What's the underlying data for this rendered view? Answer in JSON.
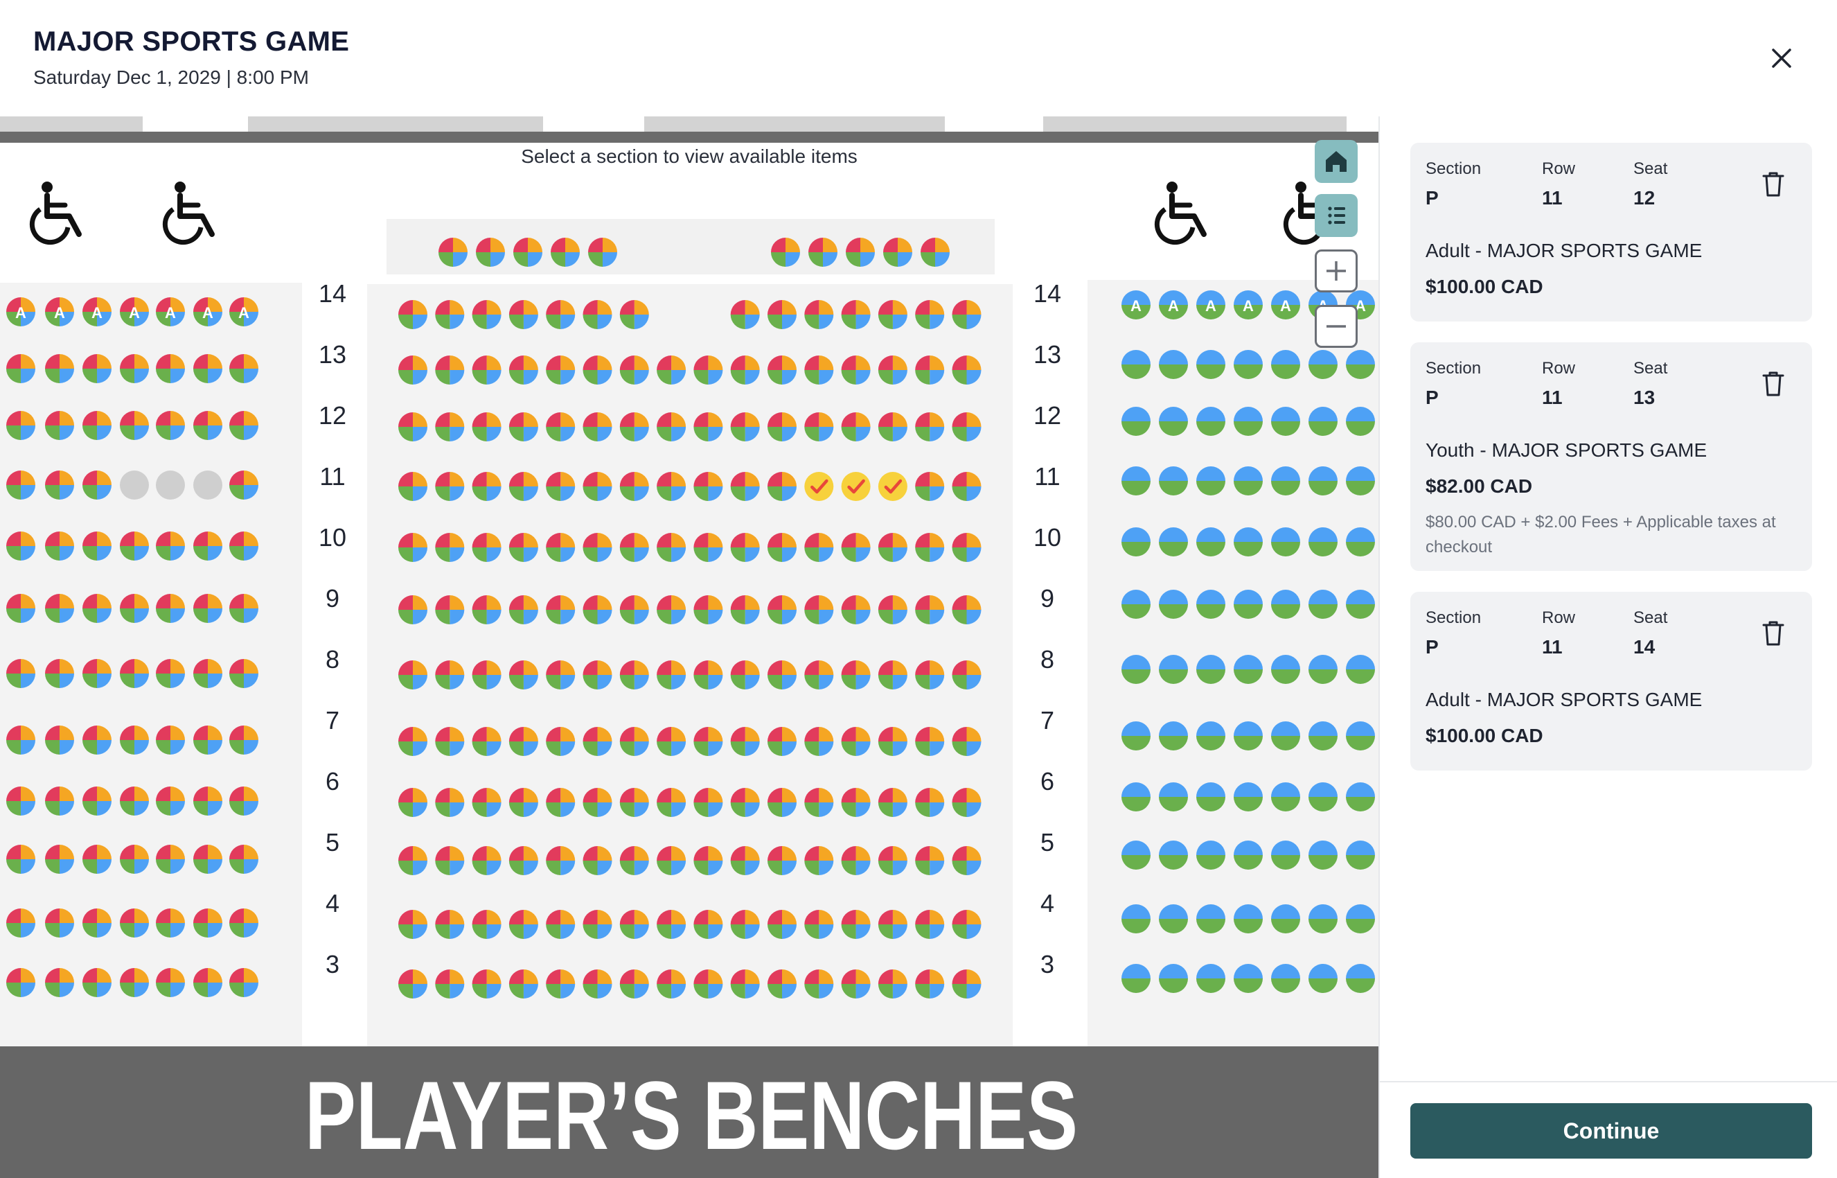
{
  "header": {
    "title": "MAJOR SPORTS GAME",
    "date": "Saturday Dec 1, 2029 | 8:00 PM"
  },
  "map": {
    "hint": "Select a section to view available items",
    "bench_label": "PLAYER’S BENCHES",
    "row_labels": [
      "14",
      "13",
      "12",
      "11",
      "10",
      "9",
      "8",
      "7",
      "6",
      "5",
      "4",
      "3"
    ],
    "accessible_seat_mark": "A",
    "controls": [
      "home-icon",
      "list-icon",
      "zoom-in-icon",
      "zoom-out-icon"
    ],
    "colors": {
      "quad": [
        "#f5a623",
        "#4ea1f5",
        "#6ab04c",
        "#e23b5c"
      ],
      "half_top": "#4ea1f5",
      "half_bottom": "#6ab04c",
      "unavailable": "#cfcfcf",
      "selected": "#f7d13c",
      "check": "#e8473a"
    }
  },
  "cart": {
    "section_label": "Section",
    "row_label": "Row",
    "seat_label": "Seat",
    "items": [
      {
        "section": "P",
        "row": "11",
        "seat": "12",
        "description": "Adult - MAJOR SPORTS GAME",
        "price": "$100.00 CAD",
        "fees": ""
      },
      {
        "section": "P",
        "row": "11",
        "seat": "13",
        "description": "Youth - MAJOR SPORTS GAME",
        "price": "$82.00 CAD",
        "fees": "$80.00 CAD + $2.00 Fees + Applicable taxes at checkout"
      },
      {
        "section": "P",
        "row": "11",
        "seat": "14",
        "description": "Adult - MAJOR SPORTS GAME",
        "price": "$100.00 CAD",
        "fees": ""
      }
    ]
  },
  "footer": {
    "continue_label": "Continue",
    "brand_color": "#2b5a5f"
  }
}
